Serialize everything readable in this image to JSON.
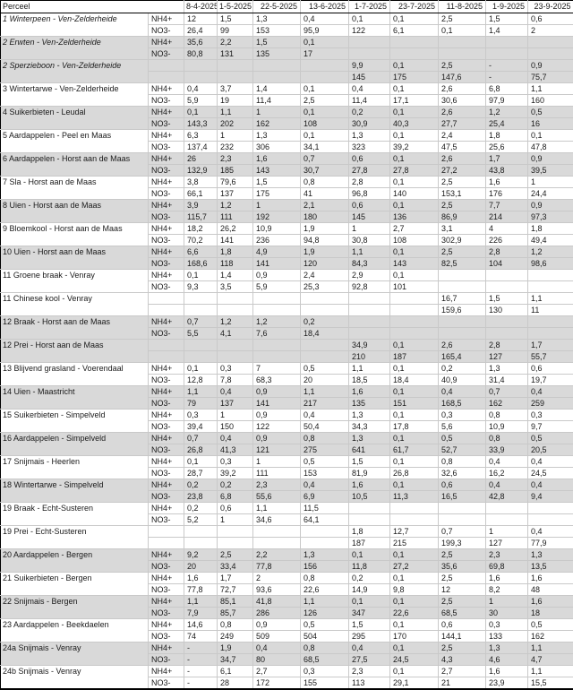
{
  "table": {
    "header": {
      "perceel": "Perceel",
      "ion_header": "",
      "dates": [
        "8-4-2025",
        "1-5-2025",
        "22-5-2025",
        "13-6-2025",
        "1-7-2025",
        "23-7-2025",
        "11-8-2025",
        "1-9-2025",
        "23-9-2025"
      ]
    },
    "ion_labels": {
      "nh4": "NH4+",
      "no3": "NO3-"
    },
    "colors": {
      "band_gray": "#d9d9d9",
      "grid_line": "#c9c9c9",
      "frame": "#000000"
    },
    "rows": [
      {
        "label": "1 Winterpeen - Ven-Zelderheide",
        "italic": true,
        "shaded": false,
        "nh4_label": "NH4+",
        "no3_label": "NO3-",
        "nh4": [
          "12",
          "1,5",
          "1,3",
          "0,4",
          "0,1",
          "0,1",
          "2,5",
          "1,5",
          "0,6"
        ],
        "no3": [
          "26,4",
          "99",
          "153",
          "95,9",
          "122",
          "6,1",
          "0,1",
          "1,4",
          "2"
        ]
      },
      {
        "label": "2 Erwten - Ven-Zelderheide",
        "italic": true,
        "shaded": true,
        "nh4_label": "NH4+",
        "no3_label": "NO3-",
        "nh4": [
          "35,6",
          "2,2",
          "1,5",
          "0,1",
          "",
          "",
          "",
          "",
          ""
        ],
        "no3": [
          "80,8",
          "131",
          "135",
          "17",
          "",
          "",
          "",
          "",
          ""
        ]
      },
      {
        "label": "2 Sperzieboon - Ven-Zelderheide",
        "italic": true,
        "shaded": true,
        "nh4_label": "",
        "no3_label": "",
        "nh4": [
          "",
          "",
          "",
          "",
          "9,9",
          "0,1",
          "2,5",
          "-",
          "0,9"
        ],
        "no3": [
          "",
          "",
          "",
          "",
          "145",
          "175",
          "147,6",
          "-",
          "75,7"
        ]
      },
      {
        "label": "3 Wintertarwe - Ven-Zelderheide",
        "italic": false,
        "shaded": false,
        "nh4_label": "NH4+",
        "no3_label": "NO3-",
        "nh4": [
          "0,4",
          "3,7",
          "1,4",
          "0,1",
          "0,4",
          "0,1",
          "2,6",
          "6,8",
          "1,1"
        ],
        "no3": [
          "5,9",
          "19",
          "11,4",
          "2,5",
          "11,4",
          "17,1",
          "30,6",
          "97,9",
          "160"
        ]
      },
      {
        "label": "4 Suikerbieten - Leudal",
        "italic": false,
        "shaded": true,
        "nh4_label": "NH4+",
        "no3_label": "NO3-",
        "nh4": [
          "0,1",
          "1,1",
          "1",
          "0,1",
          "0,2",
          "0,1",
          "2,6",
          "1,2",
          "0,5"
        ],
        "no3": [
          "143,3",
          "202",
          "162",
          "108",
          "30,9",
          "40,3",
          "27,7",
          "25,4",
          "16"
        ]
      },
      {
        "label": "5 Aardappelen - Peel en Maas",
        "italic": false,
        "shaded": false,
        "nh4_label": "NH4+",
        "no3_label": "NO3-",
        "nh4": [
          "6,3",
          "1",
          "1,3",
          "0,1",
          "1,3",
          "0,1",
          "2,4",
          "1,8",
          "0,1"
        ],
        "no3": [
          "137,4",
          "232",
          "306",
          "34,1",
          "323",
          "39,2",
          "47,5",
          "25,6",
          "47,8"
        ]
      },
      {
        "label": "6 Aardappelen - Horst aan de Maas",
        "italic": false,
        "shaded": true,
        "nh4_label": "NH4+",
        "no3_label": "NO3-",
        "nh4": [
          "26",
          "2,3",
          "1,6",
          "0,7",
          "0,6",
          "0,1",
          "2,6",
          "1,7",
          "0,9"
        ],
        "no3": [
          "132,9",
          "185",
          "143",
          "30,7",
          "27,8",
          "27,8",
          "27,2",
          "43,8",
          "39,5"
        ]
      },
      {
        "label": "7 Sla - Horst aan de Maas",
        "italic": false,
        "shaded": false,
        "nh4_label": "NH4+",
        "no3_label": "NO3-",
        "nh4": [
          "3,8",
          "79,6",
          "1,5",
          "0,8",
          "2,8",
          "0,1",
          "2,5",
          "1,6",
          "1"
        ],
        "no3": [
          "66,1",
          "137",
          "175",
          "41",
          "96,8",
          "140",
          "153,1",
          "176",
          "24,4"
        ]
      },
      {
        "label": "8 Uien - Horst aan de Maas",
        "italic": false,
        "shaded": true,
        "nh4_label": "NH4+",
        "no3_label": "NO3-",
        "nh4": [
          "3,9",
          "1,2",
          "1",
          "2,1",
          "0,6",
          "0,1",
          "2,5",
          "7,7",
          "0,9"
        ],
        "no3": [
          "115,7",
          "111",
          "192",
          "180",
          "145",
          "136",
          "86,9",
          "214",
          "97,3"
        ]
      },
      {
        "label": "9 Bloemkool - Horst aan de Maas",
        "italic": false,
        "shaded": false,
        "nh4_label": "NH4+",
        "no3_label": "NO3-",
        "nh4": [
          "18,2",
          "26,2",
          "10,9",
          "1,9",
          "1",
          "2,7",
          "3,1",
          "4",
          "1,8"
        ],
        "no3": [
          "70,2",
          "141",
          "236",
          "94,8",
          "30,8",
          "108",
          "302,9",
          "226",
          "49,4"
        ]
      },
      {
        "label": "10 Uien - Horst aan de Maas",
        "italic": false,
        "shaded": true,
        "nh4_label": "NH4+",
        "no3_label": "NO3-",
        "nh4": [
          "6,6",
          "1,8",
          "4,9",
          "1,9",
          "1,1",
          "0,1",
          "2,5",
          "2,8",
          "1,2"
        ],
        "no3": [
          "168,6",
          "118",
          "141",
          "120",
          "84,3",
          "143",
          "82,5",
          "104",
          "98,6"
        ]
      },
      {
        "label": "11 Groene braak - Venray",
        "italic": false,
        "shaded": false,
        "nh4_label": "NH4+",
        "no3_label": "NO3-",
        "nh4": [
          "0,1",
          "1,4",
          "0,9",
          "2,4",
          "2,9",
          "0,1",
          "",
          "",
          ""
        ],
        "no3": [
          "9,3",
          "3,5",
          "5,9",
          "25,3",
          "92,8",
          "101",
          "",
          "",
          ""
        ]
      },
      {
        "label": "11 Chinese kool - Venray",
        "italic": false,
        "shaded": false,
        "nh4_label": "",
        "no3_label": "",
        "nh4": [
          "",
          "",
          "",
          "",
          "",
          "",
          "16,7",
          "1,5",
          "1,1"
        ],
        "no3": [
          "",
          "",
          "",
          "",
          "",
          "",
          "159,6",
          "130",
          "11"
        ]
      },
      {
        "label": "12 Braak - Horst aan de Maas",
        "italic": false,
        "shaded": true,
        "nh4_label": "NH4+",
        "no3_label": "NO3-",
        "nh4": [
          "0,7",
          "1,2",
          "1,2",
          "0,2",
          "",
          "",
          "",
          "",
          ""
        ],
        "no3": [
          "5,5",
          "4,1",
          "7,6",
          "18,4",
          "",
          "",
          "",
          "",
          ""
        ]
      },
      {
        "label": "12 Prei - Horst aan de Maas",
        "italic": false,
        "shaded": true,
        "nh4_label": "",
        "no3_label": "",
        "nh4": [
          "",
          "",
          "",
          "",
          "34,9",
          "0,1",
          "2,6",
          "2,8",
          "1,7"
        ],
        "no3": [
          "",
          "",
          "",
          "",
          "210",
          "187",
          "165,4",
          "127",
          "55,7"
        ]
      },
      {
        "label": "13 Blijvend grasland - Voerendaal",
        "italic": false,
        "shaded": false,
        "nh4_label": "NH4+",
        "no3_label": "NO3-",
        "nh4": [
          "0,1",
          "0,3",
          "7",
          "0,5",
          "1,1",
          "0,1",
          "0,2",
          "1,3",
          "0,6"
        ],
        "no3": [
          "12,8",
          "7,8",
          "68,3",
          "20",
          "18,5",
          "18,4",
          "40,9",
          "31,4",
          "19,7"
        ]
      },
      {
        "label": "14 Uien - Maastricht",
        "italic": false,
        "shaded": true,
        "nh4_label": "NH4+",
        "no3_label": "NO3-",
        "nh4": [
          "1,1",
          "0,4",
          "0,9",
          "1,1",
          "1,6",
          "0,1",
          "0,4",
          "0,7",
          "0,4"
        ],
        "no3": [
          "79",
          "137",
          "141",
          "217",
          "135",
          "151",
          "168,5",
          "162",
          "259"
        ]
      },
      {
        "label": "15 Suikerbieten - Simpelveld",
        "italic": false,
        "shaded": false,
        "nh4_label": "NH4+",
        "no3_label": "NO3-",
        "nh4": [
          "0,3",
          "1",
          "0,9",
          "0,4",
          "1,3",
          "0,1",
          "0,3",
          "0,8",
          "0,3"
        ],
        "no3": [
          "39,4",
          "150",
          "122",
          "50,4",
          "34,3",
          "17,8",
          "5,6",
          "10,9",
          "9,7"
        ]
      },
      {
        "label": "16 Aardappelen - Simpelveld",
        "italic": false,
        "shaded": true,
        "nh4_label": "NH4+",
        "no3_label": "NO3-",
        "nh4": [
          "0,7",
          "0,4",
          "0,9",
          "0,8",
          "1,3",
          "0,1",
          "0,5",
          "0,8",
          "0,5"
        ],
        "no3": [
          "26,8",
          "41,3",
          "121",
          "275",
          "641",
          "61,7",
          "52,7",
          "33,9",
          "20,5"
        ]
      },
      {
        "label": "17 Snijmais - Heerlen",
        "italic": false,
        "shaded": false,
        "nh4_label": "NH4+",
        "no3_label": "NO3-",
        "nh4": [
          "0,1",
          "0,3",
          "1",
          "0,5",
          "1,5",
          "0,1",
          "0,8",
          "0,4",
          "0,4"
        ],
        "no3": [
          "28,7",
          "39,2",
          "111",
          "153",
          "81,9",
          "26,8",
          "32,6",
          "16,2",
          "24,5"
        ]
      },
      {
        "label": "18 Wintertarwe - Simpelveld",
        "italic": false,
        "shaded": true,
        "nh4_label": "NH4+",
        "no3_label": "NO3-",
        "nh4": [
          "0,2",
          "0,2",
          "2,3",
          "0,4",
          "1,6",
          "0,1",
          "0,6",
          "0,4",
          "0,4"
        ],
        "no3": [
          "23,8",
          "6,8",
          "55,6",
          "6,9",
          "10,5",
          "11,3",
          "16,5",
          "42,8",
          "9,4"
        ]
      },
      {
        "label": "19 Braak - Echt-Susteren",
        "italic": false,
        "shaded": false,
        "nh4_label": "NH4+",
        "no3_label": "NO3-",
        "nh4": [
          "0,2",
          "0,6",
          "1,1",
          "11,5",
          "",
          "",
          "",
          "",
          ""
        ],
        "no3": [
          "5,2",
          "1",
          "34,6",
          "64,1",
          "",
          "",
          "",
          "",
          ""
        ]
      },
      {
        "label": "19 Prei - Echt-Susteren",
        "italic": false,
        "shaded": false,
        "nh4_label": "",
        "no3_label": "",
        "nh4": [
          "",
          "",
          "",
          "",
          "1,8",
          "12,7",
          "0,7",
          "1",
          "0,4"
        ],
        "no3": [
          "",
          "",
          "",
          "",
          "187",
          "215",
          "199,3",
          "127",
          "77,9"
        ]
      },
      {
        "label": "20 Aardappelen - Bergen",
        "italic": false,
        "shaded": true,
        "nh4_label": "NH4+",
        "no3_label": "NO3-",
        "nh4": [
          "9,2",
          "2,5",
          "2,2",
          "1,3",
          "0,1",
          "0,1",
          "2,5",
          "2,3",
          "1,3"
        ],
        "no3": [
          "20",
          "33,4",
          "77,8",
          "156",
          "11,8",
          "27,2",
          "35,6",
          "69,8",
          "13,5"
        ]
      },
      {
        "label": "21 Suikerbieten - Bergen",
        "italic": false,
        "shaded": false,
        "nh4_label": "NH4+",
        "no3_label": "NO3-",
        "nh4": [
          "1,6",
          "1,7",
          "2",
          "0,8",
          "0,2",
          "0,1",
          "2,5",
          "1,6",
          "1,6"
        ],
        "no3": [
          "77,8",
          "72,7",
          "93,6",
          "22,6",
          "14,9",
          "9,8",
          "12",
          "8,2",
          "48"
        ]
      },
      {
        "label": "22 Snijmais - Bergen",
        "italic": false,
        "shaded": true,
        "nh4_label": "NH4+",
        "no3_label": "NO3-",
        "nh4": [
          "1,1",
          "85,1",
          "41,8",
          "1,1",
          "0,1",
          "0,1",
          "2,5",
          "1",
          "1,6"
        ],
        "no3": [
          "7,9",
          "85,7",
          "286",
          "126",
          "347",
          "22,6",
          "68,5",
          "30",
          "18"
        ]
      },
      {
        "label": "23 Aardappelen - Beekdaelen",
        "italic": false,
        "shaded": false,
        "nh4_label": "NH4+",
        "no3_label": "NO3-",
        "nh4": [
          "14,6",
          "0,8",
          "0,9",
          "0,5",
          "1,5",
          "0,1",
          "0,6",
          "0,3",
          "0,5"
        ],
        "no3": [
          "74",
          "249",
          "509",
          "504",
          "295",
          "170",
          "144,1",
          "133",
          "162"
        ]
      },
      {
        "label": "24a Snijmais - Venray",
        "italic": false,
        "shaded": true,
        "nh4_label": "NH4+",
        "no3_label": "NO3-",
        "nh4": [
          "-",
          "1,9",
          "0,4",
          "0,8",
          "0,4",
          "0,1",
          "2,5",
          "1,3",
          "1,1"
        ],
        "no3": [
          "-",
          "34,7",
          "80",
          "68,5",
          "27,5",
          "24,5",
          "4,3",
          "4,6",
          "4,7"
        ]
      },
      {
        "label": "24b Snijmais - Venray",
        "italic": false,
        "shaded": false,
        "nh4_label": "NH4+",
        "no3_label": "NO3-",
        "nh4": [
          "-",
          "6,1",
          "2,7",
          "0,3",
          "2,3",
          "0,1",
          "2,7",
          "1,6",
          "1,1"
        ],
        "no3": [
          "-",
          "28",
          "172",
          "155",
          "113",
          "29,1",
          "21",
          "23,9",
          "15,5"
        ]
      }
    ]
  }
}
